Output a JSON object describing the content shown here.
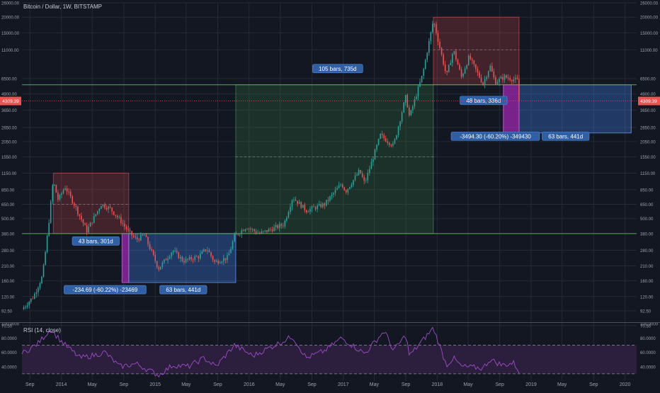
{
  "title": "Bitcoin / Dollar, 1W, BITSTAMP",
  "colors": {
    "background": "#131722",
    "grid": "#252a37",
    "up": "#26a69a",
    "down": "#ef5350",
    "price_tag": "#ef5350",
    "rsi_line": "#a24acb",
    "rsi_band": "#2b1f3d"
  },
  "chart_data": {
    "type": "candlestick",
    "title": "Bitcoin / Dollar, 1W, BITSTAMP",
    "yscale": "log",
    "ylim": [
      75,
      26000
    ],
    "y_ticks": [
      "26000.00",
      "20000.00",
      "15000.00",
      "11000.00",
      "6500.00",
      "4900.00",
      "3650.00",
      "2650.00",
      "2050.00",
      "1550.00",
      "1150.00",
      "850.00",
      "650.00",
      "500.00",
      "380.00",
      "280.00",
      "210.00",
      "160.00",
      "120.00",
      "92.50",
      "70.50"
    ],
    "x_ticks": [
      "Sep",
      "2014",
      "May",
      "Sep",
      "2015",
      "May",
      "Sep",
      "2016",
      "May",
      "Sep",
      "2017",
      "May",
      "Sep",
      "2018",
      "May",
      "Sep",
      "2019",
      "May",
      "Sep",
      "2020"
    ],
    "last_price": "4309.39",
    "price_path": [
      [
        "2013-08-01",
        95
      ],
      [
        "2013-09-15",
        120
      ],
      [
        "2013-10-20",
        175
      ],
      [
        "2013-11-10",
        400
      ],
      [
        "2013-11-30",
        1000
      ],
      [
        "2013-12-20",
        700
      ],
      [
        "2014-01-15",
        900
      ],
      [
        "2014-02-25",
        620
      ],
      [
        "2014-04-10",
        400
      ],
      [
        "2014-06-05",
        650
      ],
      [
        "2014-07-10",
        600
      ],
      [
        "2014-08-20",
        480
      ],
      [
        "2014-09-20",
        390
      ],
      [
        "2014-10-20",
        340
      ],
      [
        "2014-11-20",
        370
      ],
      [
        "2015-01-14",
        200
      ],
      [
        "2015-03-10",
        280
      ],
      [
        "2015-04-20",
        230
      ],
      [
        "2015-06-20",
        250
      ],
      [
        "2015-07-20",
        290
      ],
      [
        "2015-08-20",
        225
      ],
      [
        "2015-10-10",
        245
      ],
      [
        "2015-11-05",
        360
      ],
      [
        "2015-12-20",
        430
      ],
      [
        "2016-02-10",
        380
      ],
      [
        "2016-05-15",
        450
      ],
      [
        "2016-06-18",
        740
      ],
      [
        "2016-08-10",
        580
      ],
      [
        "2016-10-20",
        650
      ],
      [
        "2016-12-25",
        950
      ],
      [
        "2017-01-10",
        820
      ],
      [
        "2017-03-05",
        1200
      ],
      [
        "2017-03-25",
        950
      ],
      [
        "2017-05-25",
        2300
      ],
      [
        "2017-07-15",
        1900
      ],
      [
        "2017-09-01",
        4700
      ],
      [
        "2017-09-15",
        3200
      ],
      [
        "2017-11-05",
        7000
      ],
      [
        "2017-12-17",
        19000
      ],
      [
        "2018-02-06",
        6800
      ],
      [
        "2018-03-05",
        11000
      ],
      [
        "2018-04-05",
        6700
      ],
      [
        "2018-05-05",
        9700
      ],
      [
        "2018-06-28",
        5900
      ],
      [
        "2018-07-25",
        8200
      ],
      [
        "2018-08-14",
        6100
      ],
      [
        "2018-09-20",
        6700
      ],
      [
        "2018-10-25",
        6400
      ],
      [
        "2018-11-08",
        6300
      ],
      [
        "2018-11-20",
        4309.39
      ]
    ],
    "zones": [
      {
        "type": "decline",
        "from": "2013-12-01",
        "to": "2014-09-20",
        "top": 1150,
        "bottom": 380,
        "midline": 650
      },
      {
        "type": "decline_projection",
        "from": "2017-12-17",
        "to": "2018-11-15",
        "top": 20000,
        "bottom": 5800,
        "midline": 11000
      },
      {
        "type": "accumulation",
        "from": "2014-09-20",
        "to": "2015-11-10",
        "top": 380,
        "bottom": 155
      },
      {
        "type": "accumulation_projection",
        "from": "2018-11-15",
        "to": "2020-01-25",
        "top": 5800,
        "bottom": 2400
      },
      {
        "type": "rally",
        "from": "2015-11-10",
        "to": "2017-12-17",
        "top": 5800,
        "bottom": 380,
        "midline": 1550
      },
      {
        "type": "drop",
        "from": "2014-08-25",
        "to": "2014-09-20",
        "top": 380,
        "bottom": 155
      },
      {
        "type": "drop_projection",
        "from": "2018-09-15",
        "to": "2018-11-15",
        "top": 5800,
        "bottom": 2400
      }
    ],
    "horizontal_lines": [
      380,
      5800
    ],
    "rsi": {
      "title": "RSI (14, close)",
      "ylim": [
        20,
        100
      ],
      "upper_band": 70,
      "lower_band": 30,
      "ticks": [
        "100.0000",
        "80.0000",
        "60.0000",
        "40.0000"
      ],
      "path": [
        [
          "2013-08-01",
          58
        ],
        [
          "2013-10-01",
          72
        ],
        [
          "2013-11-20",
          92
        ],
        [
          "2014-01-10",
          72
        ],
        [
          "2014-03-15",
          52
        ],
        [
          "2014-05-10",
          56
        ],
        [
          "2014-06-20",
          60
        ],
        [
          "2014-08-15",
          40
        ],
        [
          "2014-10-20",
          44
        ],
        [
          "2015-01-14",
          28
        ],
        [
          "2015-03-10",
          42
        ],
        [
          "2015-05-10",
          40
        ],
        [
          "2015-07-10",
          52
        ],
        [
          "2015-08-25",
          40
        ],
        [
          "2015-11-05",
          70
        ],
        [
          "2016-01-15",
          55
        ],
        [
          "2016-06-18",
          82
        ],
        [
          "2016-08-10",
          52
        ],
        [
          "2016-10-20",
          62
        ],
        [
          "2016-12-25",
          80
        ],
        [
          "2017-03-25",
          58
        ],
        [
          "2017-06-10",
          90
        ],
        [
          "2017-07-15",
          62
        ],
        [
          "2017-09-01",
          84
        ],
        [
          "2017-09-15",
          55
        ],
        [
          "2017-12-17",
          94
        ],
        [
          "2018-02-06",
          42
        ],
        [
          "2018-03-05",
          52
        ],
        [
          "2018-04-05",
          40
        ],
        [
          "2018-06-28",
          38
        ],
        [
          "2018-07-25",
          50
        ],
        [
          "2018-09-10",
          42
        ],
        [
          "2018-10-25",
          45
        ],
        [
          "2018-11-20",
          31
        ]
      ]
    },
    "measure_labels": [
      {
        "id": "decline_2014",
        "text": "43 bars, 301d",
        "date": "2014-05-15",
        "price": 332
      },
      {
        "id": "rally",
        "text": "105 bars, 735d",
        "date": "2016-12-10",
        "price": 7800
      },
      {
        "id": "decline_2018",
        "text": "48 bars, 336d",
        "date": "2018-06-30",
        "price": 4350
      },
      {
        "id": "drop_2014",
        "text": "-234.69 (-60.22%) -23469",
        "date": "2014-06-20",
        "price": 136
      },
      {
        "id": "accum_2015",
        "text": "63 bars, 441d",
        "date": "2015-04-20",
        "price": 136
      },
      {
        "id": "drop_2018",
        "text": "-3494.30 (-60.20%) -349430",
        "date": "2018-08-15",
        "price": 2260
      },
      {
        "id": "accum_2019",
        "text": "63 bars, 441d",
        "date": "2019-05-15",
        "price": 2260
      }
    ]
  }
}
